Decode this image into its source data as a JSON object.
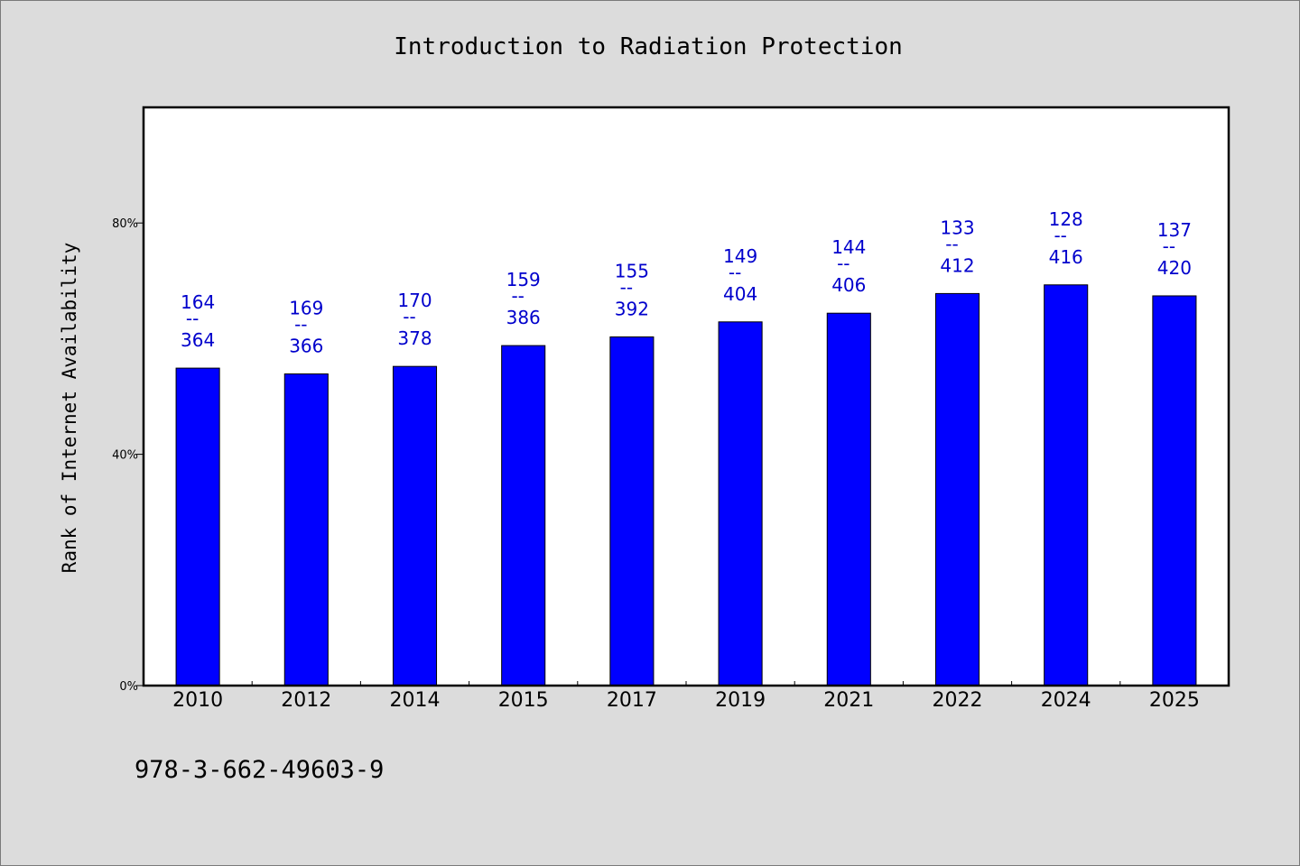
{
  "chart_data": {
    "type": "bar",
    "title": "Introduction to Radiation Protection",
    "ylabel": "Rank of Internet Availability",
    "xlabel": "",
    "categories": [
      "2010",
      "2012",
      "2014",
      "2015",
      "2017",
      "2019",
      "2021",
      "2022",
      "2024",
      "2025"
    ],
    "values": [
      54.9,
      53.9,
      55.2,
      58.8,
      60.3,
      62.9,
      64.4,
      67.8,
      69.3,
      67.4
    ],
    "data_labels": [
      {
        "top": "164",
        "sep": "--",
        "bottom": "364"
      },
      {
        "top": "169",
        "sep": "--",
        "bottom": "366"
      },
      {
        "top": "170",
        "sep": "--",
        "bottom": "378"
      },
      {
        "top": "159",
        "sep": "--",
        "bottom": "386"
      },
      {
        "top": "155",
        "sep": "--",
        "bottom": "392"
      },
      {
        "top": "149",
        "sep": "--",
        "bottom": "404"
      },
      {
        "top": "144",
        "sep": "--",
        "bottom": "406"
      },
      {
        "top": "133",
        "sep": "--",
        "bottom": "412"
      },
      {
        "top": "128",
        "sep": "--",
        "bottom": "416"
      },
      {
        "top": "137",
        "sep": "--",
        "bottom": "420"
      }
    ],
    "yticks": [
      {
        "value": 0,
        "label": "0%"
      },
      {
        "value": 40,
        "label": "40%"
      },
      {
        "value": 80,
        "label": "80%"
      }
    ],
    "ylim": [
      0,
      100
    ],
    "grid": false,
    "legend": "none",
    "bar_color": "#0000ff",
    "label_color": "#0000cc"
  },
  "footer": {
    "isbn": "978-3-662-49603-9"
  }
}
